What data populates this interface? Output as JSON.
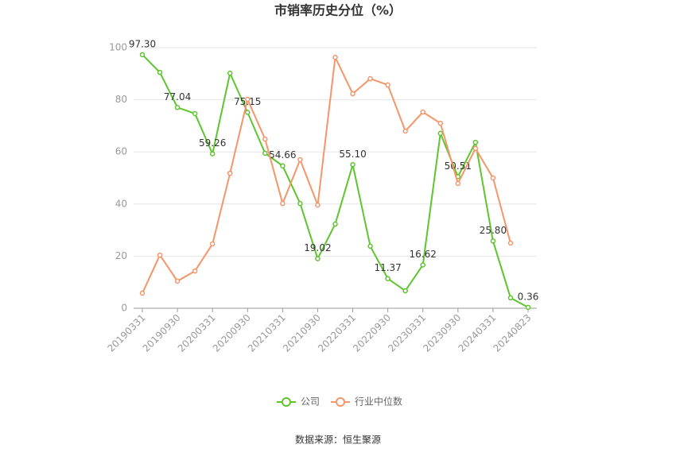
{
  "chart_data": {
    "type": "line",
    "title": "市销率历史分位（%）",
    "categories": [
      "20190331",
      null,
      "20190930",
      null,
      "20200331",
      null,
      "20200930",
      null,
      "20210331",
      null,
      "20210930",
      null,
      "20220331",
      null,
      "20220930",
      null,
      "20230331",
      null,
      "20230930",
      null,
      "20240331",
      null,
      "20240823"
    ],
    "series": [
      {
        "name": "公司",
        "color": "#5ec52e",
        "values": [
          97.3,
          90.5,
          77.04,
          74.7,
          59.26,
          90.2,
          75.15,
          59.5,
          54.66,
          40.2,
          19.02,
          32.3,
          55.1,
          23.8,
          11.37,
          6.7,
          16.62,
          67.1,
          50.51,
          63.7,
          25.8,
          4.0,
          0.36
        ],
        "value_labels": [
          "97.30",
          null,
          "77.04",
          null,
          "59.26",
          null,
          "75.15",
          null,
          "54.66",
          null,
          "19.02",
          null,
          "55.10",
          null,
          "11.37",
          null,
          "16.62",
          null,
          "50.51",
          null,
          "25.80",
          null,
          "0.36"
        ]
      },
      {
        "name": "行业中位数",
        "color": "#f5956a",
        "values": [
          5.8,
          20.4,
          10.4,
          14.3,
          24.7,
          51.8,
          80.2,
          64.9,
          40.2,
          57.0,
          39.6,
          96.3,
          82.3,
          88.1,
          85.7,
          68.0,
          75.3,
          71.0,
          47.9,
          61.3,
          50.0,
          25.0,
          null
        ]
      }
    ],
    "ylim": [
      0,
      100
    ],
    "yticks": [
      0,
      20,
      40,
      60,
      80,
      100
    ],
    "grid": true,
    "legend": "bottom",
    "source": "数据来源：恒生聚源"
  }
}
